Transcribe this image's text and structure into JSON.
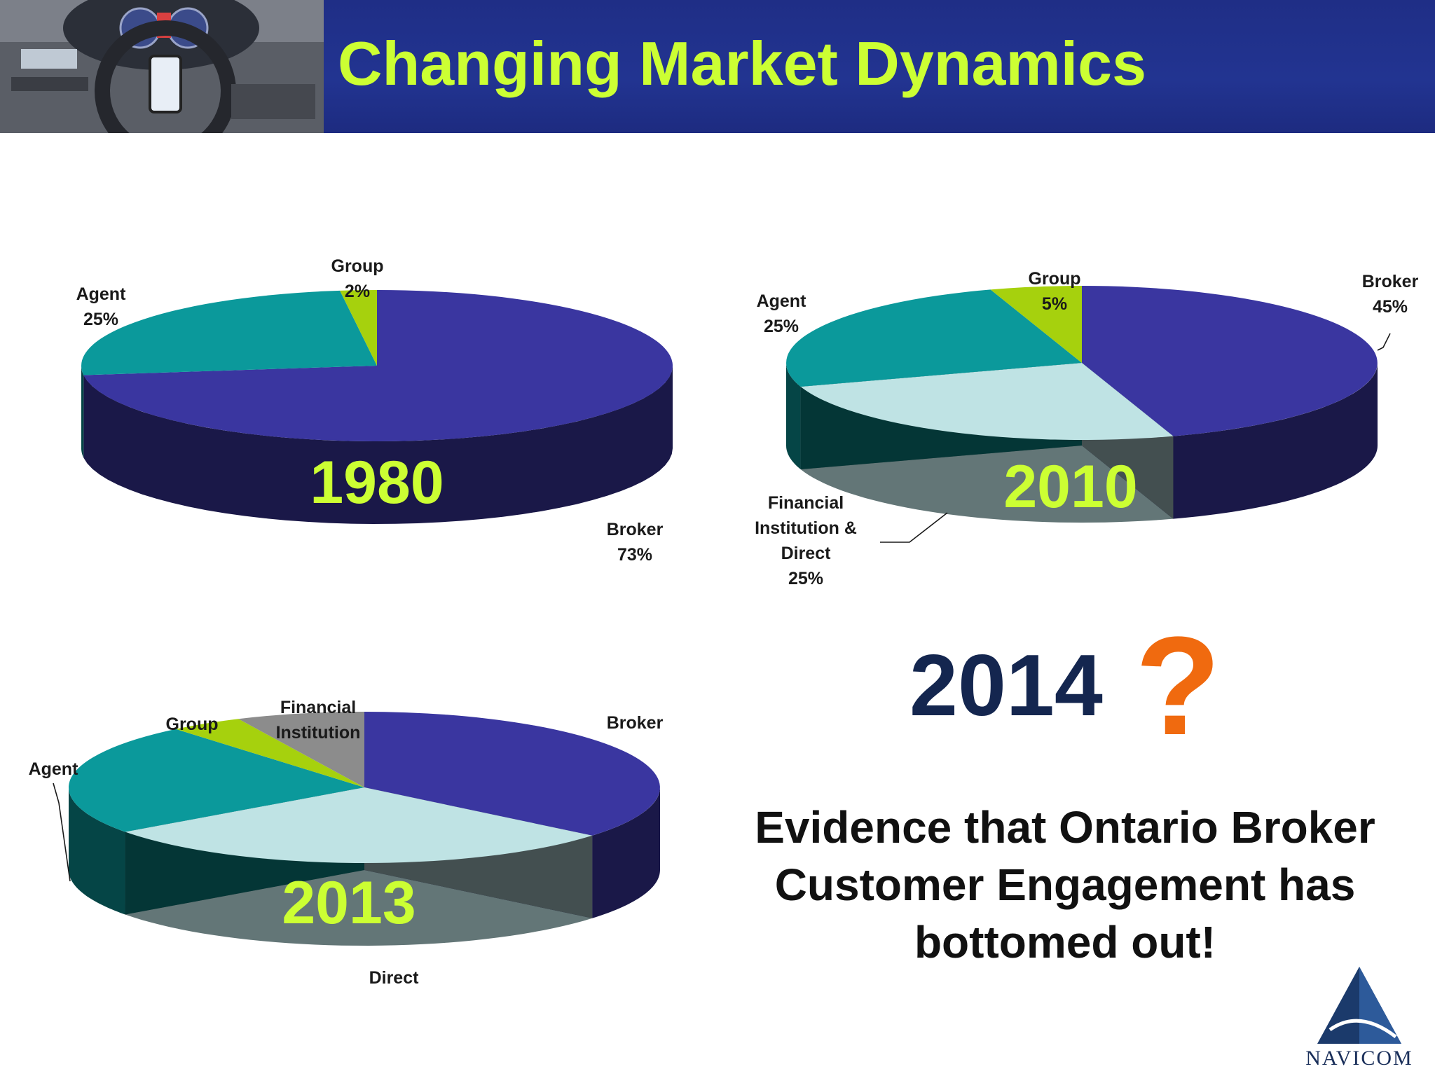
{
  "header": {
    "title": "Changing Market Dynamics"
  },
  "chart_data": [
    {
      "type": "pie",
      "title": "1980",
      "slices": [
        {
          "label": "Broker",
          "value_text": "73%",
          "value": 73,
          "color": "#3a36a0"
        },
        {
          "label": "Agent",
          "value_text": "25%",
          "value": 25,
          "color": "#0b999b"
        },
        {
          "label": "Group",
          "value_text": "2%",
          "value": 2,
          "color": "#a6d10d"
        }
      ]
    },
    {
      "type": "pie",
      "title": "2010",
      "slices": [
        {
          "label": "Broker",
          "value_text": "45%",
          "value": 45,
          "color": "#3a36a0"
        },
        {
          "label_lines": [
            "Financial",
            "Institution &",
            "Direct"
          ],
          "value_text": "25%",
          "value": 25,
          "color": "#bfe3e4"
        },
        {
          "label": "Agent",
          "value_text": "25%",
          "value": 25,
          "color": "#0b999b"
        },
        {
          "label": "Group",
          "value_text": "5%",
          "value": 5,
          "color": "#a6d10d"
        }
      ]
    },
    {
      "type": "pie",
      "title": "2013",
      "slices": [
        {
          "label": "Broker",
          "value": 36,
          "color": "#3a36a0"
        },
        {
          "label": "Direct",
          "value": 29,
          "color": "#bfe3e4"
        },
        {
          "label": "Agent",
          "value": 24,
          "color": "#0b999b"
        },
        {
          "label": "Group",
          "value": 4,
          "color": "#a6d10d"
        },
        {
          "label_lines": [
            "Financial",
            "Institution"
          ],
          "value": 7,
          "color": "#8c8c8c"
        }
      ]
    }
  ],
  "callout": {
    "year": "2014",
    "mark": "?",
    "lines": [
      "Evidence that Ontario Broker",
      "Customer Engagement has",
      "bottomed out!"
    ]
  },
  "logo": {
    "text": "NAVICOM"
  }
}
